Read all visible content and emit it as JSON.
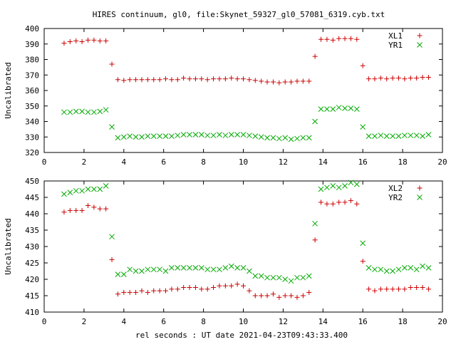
{
  "figure": {
    "title": "HIRES continuum, gl0, file:Skynet_59327_gl0_57081_6319.cyb.txt",
    "xlabel": "rel seconds : UT date 2021-04-23T09:43:33.400"
  },
  "chart_data": [
    {
      "type": "scatter",
      "ylabel": "Uncalibrated",
      "xlim": [
        0,
        20
      ],
      "ylim": [
        320,
        400
      ],
      "xticks": [
        "0",
        "2",
        "4",
        "6",
        "8",
        "10",
        "12",
        "14",
        "16",
        "18",
        "20"
      ],
      "yticks": [
        "320",
        "330",
        "340",
        "350",
        "360",
        "370",
        "380",
        "390",
        "400"
      ],
      "legend_position": "top-right",
      "x": [
        1.0,
        1.3,
        1.6,
        1.9,
        2.2,
        2.5,
        2.8,
        3.1,
        3.4,
        3.7,
        4.0,
        4.3,
        4.6,
        4.9,
        5.2,
        5.5,
        5.8,
        6.1,
        6.4,
        6.7,
        7.0,
        7.3,
        7.6,
        7.9,
        8.2,
        8.5,
        8.8,
        9.1,
        9.4,
        9.7,
        10.0,
        10.3,
        10.6,
        10.9,
        11.2,
        11.5,
        11.8,
        12.1,
        12.4,
        12.7,
        13.0,
        13.3,
        13.6,
        13.9,
        14.2,
        14.5,
        14.8,
        15.1,
        15.4,
        15.7,
        16.0,
        16.3,
        16.6,
        16.9,
        17.2,
        17.5,
        17.8,
        18.1,
        18.4,
        18.7,
        19.0,
        19.3
      ],
      "series": [
        {
          "name": "XL1",
          "color": "#cc0000",
          "marker": "plus",
          "values": [
            390.5,
            391.5,
            392.0,
            391.5,
            392.5,
            392.5,
            392.0,
            392.0,
            377.0,
            367.0,
            366.5,
            367.0,
            367.0,
            367.0,
            367.0,
            367.0,
            367.0,
            367.5,
            367.0,
            367.0,
            368.0,
            367.5,
            367.5,
            367.5,
            367.0,
            367.5,
            367.5,
            367.5,
            368.0,
            367.5,
            367.5,
            367.0,
            366.5,
            366.0,
            365.5,
            365.5,
            365.0,
            365.5,
            365.5,
            366.0,
            366.0,
            366.0,
            382.0,
            393.0,
            393.0,
            392.5,
            393.5,
            393.5,
            393.5,
            393.0,
            376.0,
            367.5,
            367.5,
            368.0,
            367.5,
            368.0,
            368.0,
            367.5,
            368.0,
            368.0,
            368.5,
            368.5
          ]
        },
        {
          "name": "YR1",
          "color": "#00aa00",
          "marker": "cross",
          "values": [
            346.0,
            346.0,
            346.5,
            346.5,
            346.0,
            346.0,
            346.5,
            347.5,
            336.5,
            329.5,
            330.0,
            330.5,
            330.0,
            330.0,
            330.5,
            330.5,
            330.5,
            330.5,
            330.5,
            331.0,
            331.5,
            331.5,
            331.5,
            331.5,
            331.0,
            331.0,
            331.5,
            331.0,
            331.5,
            331.5,
            331.5,
            331.0,
            330.5,
            330.0,
            329.5,
            329.5,
            329.0,
            329.5,
            328.5,
            329.0,
            329.5,
            329.5,
            340.0,
            348.0,
            348.0,
            348.0,
            349.0,
            348.5,
            348.5,
            348.0,
            336.5,
            330.5,
            330.5,
            331.0,
            330.5,
            330.5,
            330.5,
            331.0,
            331.0,
            331.0,
            330.5,
            331.5
          ]
        }
      ]
    },
    {
      "type": "scatter",
      "ylabel": "Uncalibrated",
      "xlim": [
        0,
        20
      ],
      "ylim": [
        410,
        450
      ],
      "xticks": [
        "0",
        "2",
        "4",
        "6",
        "8",
        "10",
        "12",
        "14",
        "16",
        "18",
        "20"
      ],
      "yticks": [
        "410",
        "415",
        "420",
        "425",
        "430",
        "435",
        "440",
        "445",
        "450"
      ],
      "legend_position": "top-right",
      "x": [
        1.0,
        1.3,
        1.6,
        1.9,
        2.2,
        2.5,
        2.8,
        3.1,
        3.4,
        3.7,
        4.0,
        4.3,
        4.6,
        4.9,
        5.2,
        5.5,
        5.8,
        6.1,
        6.4,
        6.7,
        7.0,
        7.3,
        7.6,
        7.9,
        8.2,
        8.5,
        8.8,
        9.1,
        9.4,
        9.7,
        10.0,
        10.3,
        10.6,
        10.9,
        11.2,
        11.5,
        11.8,
        12.1,
        12.4,
        12.7,
        13.0,
        13.3,
        13.6,
        13.9,
        14.2,
        14.5,
        14.8,
        15.1,
        15.4,
        15.7,
        16.0,
        16.3,
        16.6,
        16.9,
        17.2,
        17.5,
        17.8,
        18.1,
        18.4,
        18.7,
        19.0,
        19.3
      ],
      "series": [
        {
          "name": "XL2",
          "color": "#cc0000",
          "marker": "plus",
          "values": [
            440.5,
            441.0,
            441.0,
            441.0,
            442.5,
            442.0,
            441.5,
            441.5,
            426.0,
            415.5,
            416.0,
            416.0,
            416.0,
            416.5,
            416.0,
            416.5,
            416.5,
            416.5,
            417.0,
            417.0,
            417.5,
            417.5,
            417.5,
            417.0,
            417.0,
            417.5,
            418.0,
            418.0,
            418.0,
            418.5,
            418.0,
            416.5,
            415.0,
            415.0,
            415.0,
            415.5,
            414.5,
            415.0,
            415.0,
            414.5,
            415.0,
            416.0,
            432.0,
            443.5,
            443.0,
            443.0,
            443.5,
            443.5,
            444.0,
            443.0,
            425.5,
            417.0,
            416.5,
            417.0,
            417.0,
            417.0,
            417.0,
            417.0,
            417.5,
            417.5,
            417.5,
            417.0
          ]
        },
        {
          "name": "YR2",
          "color": "#00aa00",
          "marker": "cross",
          "values": [
            446.0,
            446.5,
            447.0,
            447.0,
            447.5,
            447.5,
            447.5,
            448.5,
            433.0,
            421.5,
            421.5,
            423.0,
            422.5,
            422.5,
            423.0,
            423.0,
            423.0,
            422.5,
            423.5,
            423.5,
            423.5,
            423.5,
            423.5,
            423.5,
            423.0,
            423.0,
            423.0,
            423.5,
            424.0,
            423.5,
            423.5,
            422.5,
            421.0,
            421.0,
            420.5,
            420.5,
            420.5,
            420.0,
            419.5,
            420.5,
            420.5,
            421.0,
            437.0,
            447.5,
            448.0,
            448.5,
            448.0,
            448.5,
            449.5,
            449.0,
            431.0,
            423.5,
            423.0,
            423.0,
            422.5,
            422.5,
            423.0,
            423.5,
            423.5,
            423.0,
            424.0,
            423.5
          ]
        }
      ]
    }
  ]
}
